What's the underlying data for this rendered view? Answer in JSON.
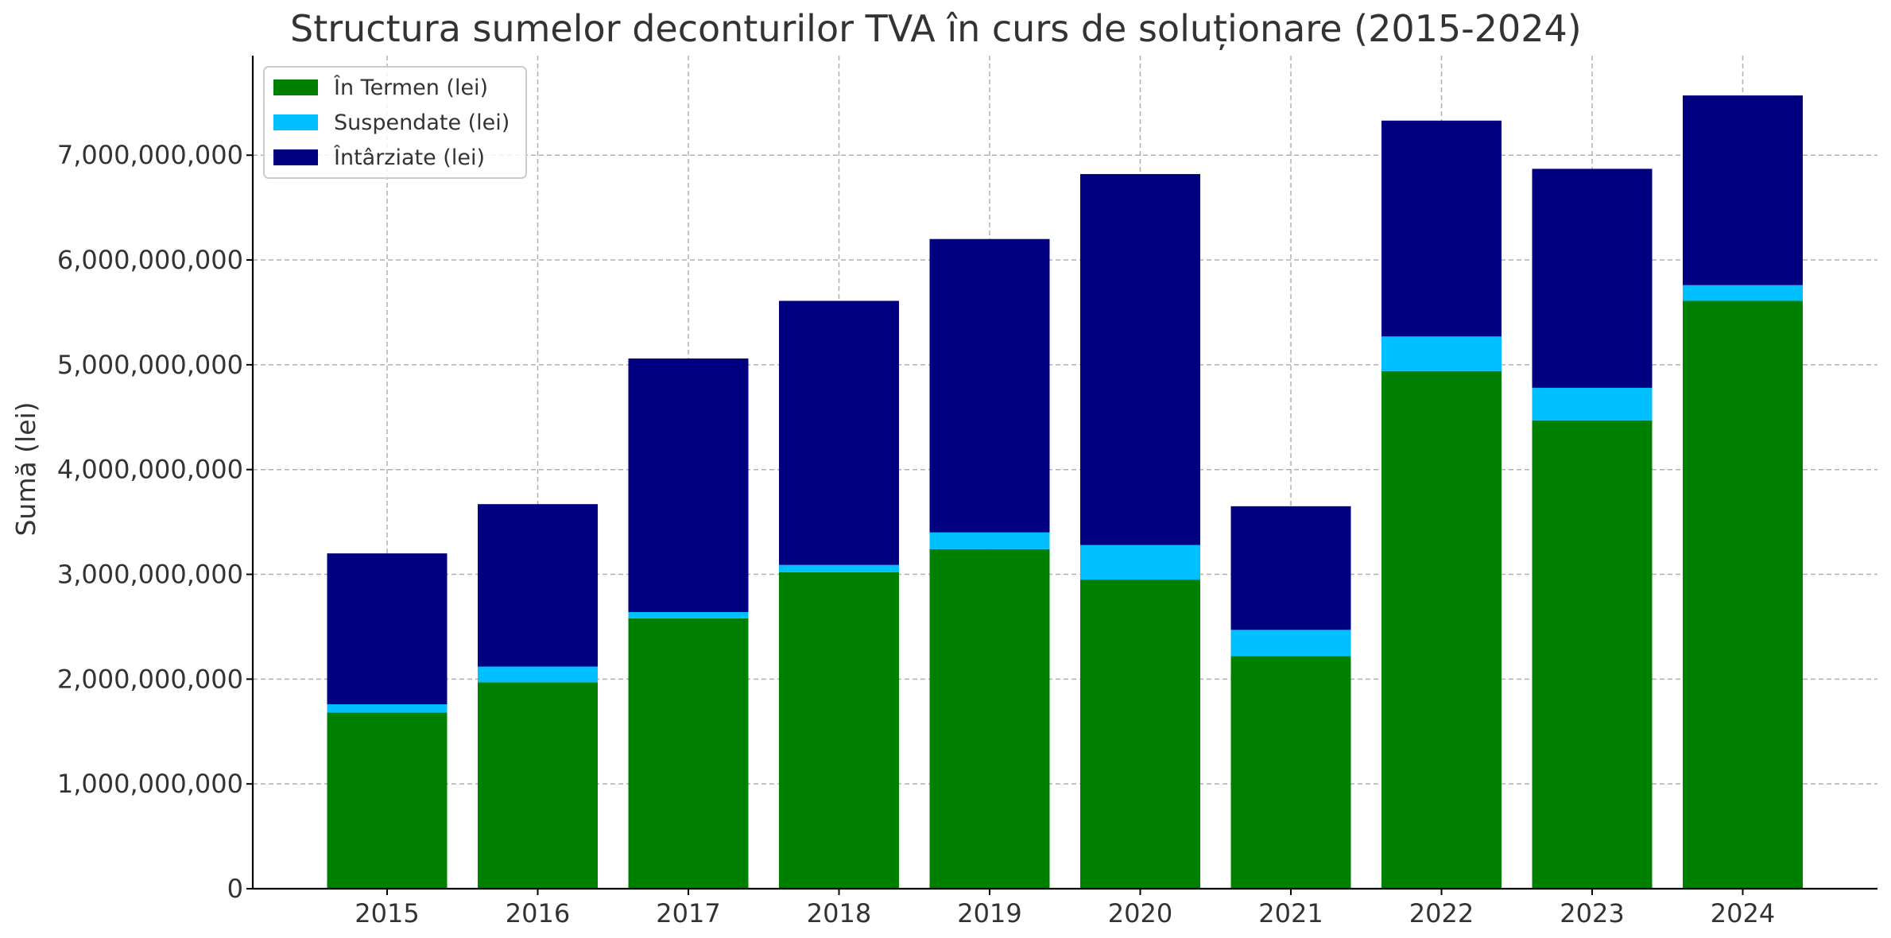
{
  "chart_data": {
    "type": "bar",
    "stacked": true,
    "title": "Structura sumelor deconturilor TVA în curs de soluționare (2015-2024)",
    "xlabel": "",
    "ylabel": "Sumă (lei)",
    "categories": [
      "2015",
      "2016",
      "2017",
      "2018",
      "2019",
      "2020",
      "2021",
      "2022",
      "2023",
      "2024"
    ],
    "series": [
      {
        "name": "În Termen (lei)",
        "color": "#008000",
        "values": [
          1680000000,
          1970000000,
          2580000000,
          3020000000,
          3240000000,
          2950000000,
          2220000000,
          4940000000,
          4470000000,
          5610000000
        ]
      },
      {
        "name": "Suspendate (lei)",
        "color": "#00BFFF",
        "values": [
          80000000,
          150000000,
          60000000,
          70000000,
          160000000,
          330000000,
          250000000,
          330000000,
          310000000,
          150000000
        ]
      },
      {
        "name": "Întârziate (lei)",
        "color": "#000080",
        "values": [
          1440000000,
          1550000000,
          2420000000,
          2520000000,
          2800000000,
          3540000000,
          1180000000,
          2060000000,
          2090000000,
          1810000000
        ]
      }
    ],
    "ylim": [
      0,
      7950000000
    ],
    "yticks": [
      {
        "value": 0,
        "label": "0"
      },
      {
        "value": 1000000000,
        "label": "1,000,000,000"
      },
      {
        "value": 2000000000,
        "label": "2,000,000,000"
      },
      {
        "value": 3000000000,
        "label": "3,000,000,000"
      },
      {
        "value": 4000000000,
        "label": "4,000,000,000"
      },
      {
        "value": 5000000000,
        "label": "5,000,000,000"
      },
      {
        "value": 6000000000,
        "label": "6,000,000,000"
      },
      {
        "value": 7000000000,
        "label": "7,000,000,000"
      }
    ],
    "grid": true,
    "legend_position": "top-left"
  }
}
